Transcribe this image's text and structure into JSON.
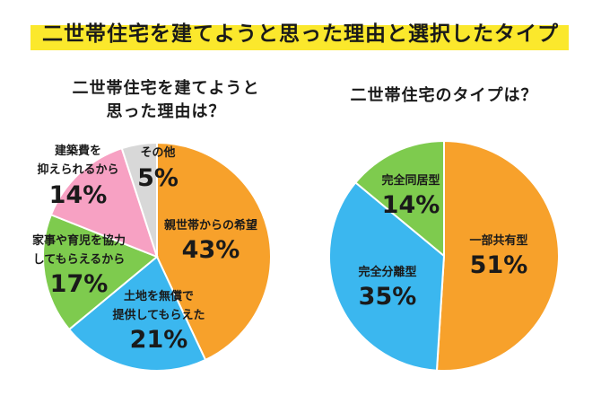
{
  "title": "二世帯住宅を建てようと思った理由と選択したタイプ",
  "chart_data": [
    {
      "type": "pie",
      "title_lines": [
        "二世帯住宅を建てようと",
        "思った理由は？"
      ],
      "slices": [
        {
          "label_lines": [
            "親世帯からの希望"
          ],
          "value": 43,
          "value_label": "43%",
          "color": "#f7a12b"
        },
        {
          "label_lines": [
            "土地を無償で",
            "提供してもらえた"
          ],
          "value": 21,
          "value_label": "21%",
          "color": "#3bb7ef"
        },
        {
          "label_lines": [
            "家事や育児を協力",
            "してもらえるから"
          ],
          "value": 17,
          "value_label": "17%",
          "color": "#7ecb4e"
        },
        {
          "label_lines": [
            "建築費を",
            "抑えられるから"
          ],
          "value": 14,
          "value_label": "14%",
          "color": "#f7a1c3"
        },
        {
          "label_lines": [
            "その他"
          ],
          "value": 5,
          "value_label": "5%",
          "color": "#d8d8d8"
        }
      ]
    },
    {
      "type": "pie",
      "title_lines": [
        "二世帯住宅のタイプは？"
      ],
      "slices": [
        {
          "label_lines": [
            "一部共有型"
          ],
          "value": 51,
          "value_label": "51%",
          "color": "#f7a12b"
        },
        {
          "label_lines": [
            "完全分離型"
          ],
          "value": 35,
          "value_label": "35%",
          "color": "#3bb7ef"
        },
        {
          "label_lines": [
            "完全同居型"
          ],
          "value": 14,
          "value_label": "14%",
          "color": "#7ecb4e"
        }
      ]
    }
  ]
}
